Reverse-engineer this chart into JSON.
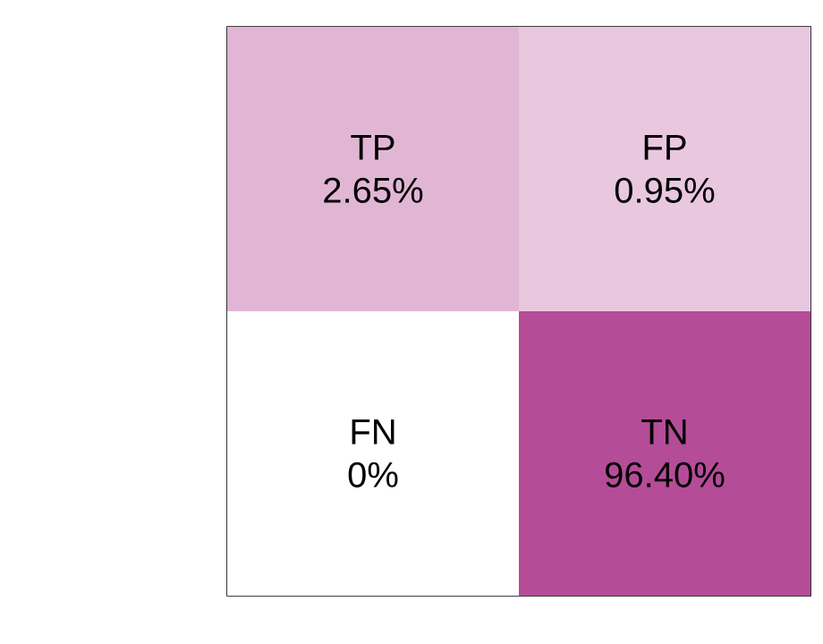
{
  "chart_data": {
    "type": "heatmap",
    "categories": [
      null,
      null
    ],
    "y_categories": [
      null,
      null
    ],
    "cells": [
      [
        2.65,
        0.95
      ],
      [
        0,
        96.4
      ]
    ],
    "cell_labels": [
      [
        "2.65%",
        "0.95%"
      ],
      [
        "0%",
        "96.40%"
      ]
    ],
    "annotations": [
      "TP",
      "FP",
      "FN",
      "TN"
    ],
    "colors": [
      "#ffffff",
      "#b54c98"
    ]
  }
}
